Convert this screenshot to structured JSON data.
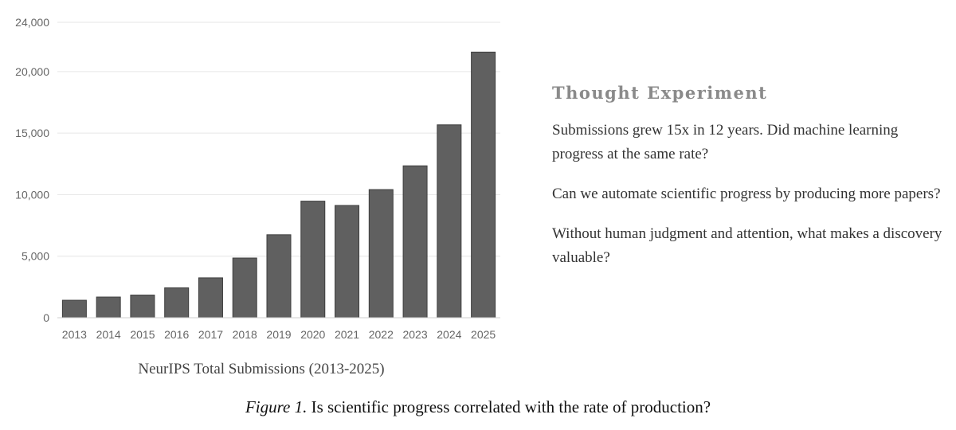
{
  "chart_data": {
    "type": "bar",
    "title": "NeurIPS Total Submissions (2013-2025)",
    "xlabel": "",
    "ylabel": "",
    "categories": [
      "2013",
      "2014",
      "2015",
      "2016",
      "2017",
      "2018",
      "2019",
      "2020",
      "2021",
      "2022",
      "2023",
      "2024",
      "2025"
    ],
    "values": [
      1420,
      1680,
      1840,
      2430,
      3240,
      4850,
      6740,
      9470,
      9120,
      10410,
      12340,
      15670,
      21580
    ],
    "ylim": [
      0,
      24000
    ],
    "yticks": [
      0,
      5000,
      10000,
      15000,
      20000,
      24000
    ],
    "ytick_labels": [
      "0",
      "5,000",
      "10,000",
      "15,000",
      "20,000",
      "24,000"
    ],
    "grid": true,
    "bar_color": "#606060"
  },
  "panel": {
    "title": "Thought Experiment",
    "paragraphs": [
      "Submissions grew 15x in 12 years. Did machine learning progress at the same rate?",
      "Can we automate scientific progress by producing more papers?",
      "Without human judgment and attention, what makes a discovery valuable?"
    ]
  },
  "caption": {
    "label": "Figure 1.",
    "text": "Is scientific progress correlated with the rate of production?"
  }
}
